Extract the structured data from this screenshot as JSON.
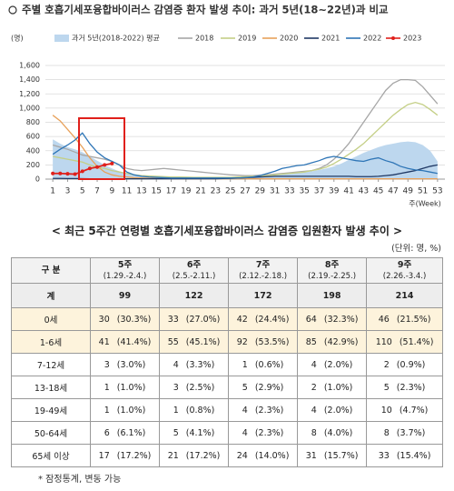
{
  "chart_data": {
    "type": "line",
    "title": "주별 호흡기세포융합바이러스 감염증 환자 발생 추이: 과거 5년(18~22년)과 비교",
    "y_label": "(명)",
    "x_label": "주(Week)",
    "x": [
      1,
      2,
      3,
      4,
      5,
      6,
      7,
      8,
      9,
      10,
      11,
      12,
      13,
      14,
      15,
      16,
      17,
      18,
      19,
      20,
      21,
      22,
      23,
      24,
      25,
      26,
      27,
      28,
      29,
      30,
      31,
      32,
      33,
      34,
      35,
      36,
      37,
      38,
      39,
      40,
      41,
      42,
      43,
      44,
      45,
      46,
      47,
      48,
      49,
      50,
      51,
      52,
      53
    ],
    "xlim": [
      0,
      54
    ],
    "xticks": [
      1,
      3,
      5,
      7,
      9,
      11,
      13,
      15,
      17,
      19,
      21,
      23,
      25,
      27,
      29,
      31,
      33,
      35,
      37,
      39,
      41,
      43,
      45,
      47,
      49,
      51,
      53
    ],
    "ylim": [
      0,
      1600
    ],
    "yticks": [
      0,
      200,
      400,
      600,
      800,
      {
        "value": 1000,
        "label": "1,000"
      },
      {
        "value": 1200,
        "label": "1,200"
      },
      {
        "value": 1400,
        "label": "1,400"
      },
      {
        "value": 1600,
        "label": "1,600"
      }
    ],
    "grid": true,
    "series": [
      {
        "name": "과거 5년(2018-2022) 평균",
        "style": "area",
        "color": "#bdd7ee",
        "values": [
          560,
          500,
          450,
          420,
          380,
          320,
          260,
          200,
          150,
          110,
          80,
          60,
          50,
          45,
          40,
          35,
          30,
          30,
          28,
          25,
          25,
          25,
          25,
          25,
          25,
          28,
          30,
          35,
          40,
          50,
          60,
          70,
          80,
          90,
          100,
          110,
          130,
          150,
          180,
          220,
          270,
          320,
          370,
          410,
          450,
          480,
          500,
          520,
          530,
          520,
          480,
          400,
          250
        ]
      },
      {
        "name": "2018",
        "style": "line",
        "color": "#a6a6a6",
        "values": [
          480,
          450,
          420,
          380,
          340,
          320,
          300,
          280,
          250,
          200,
          150,
          130,
          120,
          130,
          140,
          150,
          140,
          130,
          120,
          110,
          100,
          90,
          80,
          70,
          60,
          55,
          50,
          50,
          55,
          60,
          70,
          80,
          90,
          100,
          110,
          120,
          150,
          200,
          280,
          380,
          500,
          650,
          800,
          950,
          1100,
          1250,
          1350,
          1400,
          1400,
          1390,
          1300,
          1180,
          1060
        ]
      },
      {
        "name": "2019",
        "style": "line",
        "color": "#c4cf86",
        "values": [
          320,
          300,
          280,
          260,
          240,
          200,
          170,
          150,
          120,
          100,
          80,
          60,
          50,
          45,
          40,
          35,
          30,
          30,
          28,
          25,
          25,
          25,
          25,
          25,
          25,
          30,
          35,
          40,
          45,
          50,
          60,
          70,
          80,
          90,
          100,
          120,
          140,
          170,
          220,
          280,
          350,
          420,
          500,
          600,
          700,
          800,
          900,
          980,
          1050,
          1080,
          1050,
          980,
          900
        ]
      },
      {
        "name": "2020",
        "style": "line",
        "color": "#e8a15a",
        "values": [
          900,
          820,
          700,
          580,
          450,
          300,
          180,
          100,
          60,
          40,
          30,
          20,
          15,
          12,
          10,
          8,
          6,
          5,
          5,
          5,
          5,
          5,
          5,
          5,
          5,
          5,
          5,
          5,
          5,
          5,
          5,
          5,
          5,
          5,
          5,
          5,
          5,
          5,
          5,
          5,
          5,
          5,
          5,
          5,
          5,
          5,
          5,
          5,
          5,
          5,
          5,
          5,
          5
        ]
      },
      {
        "name": "2021",
        "style": "line",
        "color": "#1f3864",
        "values": [
          10,
          10,
          8,
          8,
          6,
          5,
          5,
          5,
          5,
          5,
          5,
          5,
          5,
          5,
          5,
          5,
          5,
          5,
          5,
          5,
          5,
          5,
          5,
          8,
          10,
          15,
          20,
          25,
          30,
          35,
          40,
          40,
          40,
          40,
          40,
          40,
          40,
          40,
          40,
          40,
          40,
          35,
          35,
          35,
          40,
          50,
          60,
          80,
          100,
          120,
          150,
          180,
          200
        ]
      },
      {
        "name": "2022",
        "style": "line",
        "color": "#2e75b6",
        "values": [
          350,
          420,
          480,
          550,
          650,
          500,
          380,
          300,
          250,
          200,
          100,
          60,
          40,
          30,
          25,
          20,
          15,
          15,
          15,
          15,
          15,
          15,
          15,
          15,
          15,
          15,
          20,
          30,
          50,
          80,
          110,
          150,
          170,
          190,
          200,
          230,
          260,
          300,
          320,
          300,
          280,
          260,
          250,
          280,
          300,
          260,
          230,
          180,
          150,
          130,
          120,
          100,
          80
        ]
      },
      {
        "name": "2023",
        "style": "marker-line",
        "color": "#e0201b",
        "values": [
          80,
          80,
          75,
          70,
          110,
          150,
          170,
          200,
          220,
          null,
          null,
          null,
          null,
          null,
          null,
          null,
          null,
          null,
          null,
          null,
          null,
          null,
          null,
          null,
          null,
          null,
          null,
          null,
          null,
          null,
          null,
          null,
          null,
          null,
          null,
          null,
          null,
          null,
          null,
          null,
          null,
          null,
          null,
          null,
          null,
          null,
          null,
          null,
          null,
          null,
          null,
          null,
          null
        ]
      }
    ]
  },
  "table": {
    "title": "< 최근 5주간 연령별 호흡기세포융합바이러스 감염증 입원환자 발생 추이 >",
    "unit": "(단위: 명, %)",
    "corner": "구 분",
    "columns": [
      {
        "week": "5주",
        "period": "(1.29.-2.4.)"
      },
      {
        "week": "6주",
        "period": "(2.5.-2.11.)"
      },
      {
        "week": "7주",
        "period": "(2.12.-2.18.)"
      },
      {
        "week": "8주",
        "period": "(2.19.-2.25.)"
      },
      {
        "week": "9주",
        "period": "(2.26.-3.4.)"
      }
    ],
    "rows": [
      {
        "label": "계",
        "cells": [
          {
            "count": 99
          },
          {
            "count": 122
          },
          {
            "count": 172
          },
          {
            "count": 198
          },
          {
            "count": 214
          }
        ]
      },
      {
        "label": "0세",
        "cells": [
          {
            "count": 30,
            "pct": "(30.3%)"
          },
          {
            "count": 33,
            "pct": "(27.0%)"
          },
          {
            "count": 42,
            "pct": "(24.4%)"
          },
          {
            "count": 64,
            "pct": "(32.3%)"
          },
          {
            "count": 46,
            "pct": "(21.5%)"
          }
        ]
      },
      {
        "label": "1-6세",
        "cells": [
          {
            "count": 41,
            "pct": "(41.4%)"
          },
          {
            "count": 55,
            "pct": "(45.1%)"
          },
          {
            "count": 92,
            "pct": "(53.5%)"
          },
          {
            "count": 85,
            "pct": "(42.9%)"
          },
          {
            "count": 110,
            "pct": "(51.4%)"
          }
        ]
      },
      {
        "label": "7-12세",
        "cells": [
          {
            "count": 3,
            "pct": "(3.0%)"
          },
          {
            "count": 4,
            "pct": "(3.3%)"
          },
          {
            "count": 1,
            "pct": "(0.6%)"
          },
          {
            "count": 4,
            "pct": "(2.0%)"
          },
          {
            "count": 2,
            "pct": "(0.9%)"
          }
        ]
      },
      {
        "label": "13-18세",
        "cells": [
          {
            "count": 1,
            "pct": "(1.0%)"
          },
          {
            "count": 3,
            "pct": "(2.5%)"
          },
          {
            "count": 5,
            "pct": "(2.9%)"
          },
          {
            "count": 2,
            "pct": "(1.0%)"
          },
          {
            "count": 5,
            "pct": "(2.3%)"
          }
        ]
      },
      {
        "label": "19-49세",
        "cells": [
          {
            "count": 1,
            "pct": "(1.0%)"
          },
          {
            "count": 1,
            "pct": "(0.8%)"
          },
          {
            "count": 4,
            "pct": "(2.3%)"
          },
          {
            "count": 4,
            "pct": "(2.0%)"
          },
          {
            "count": 10,
            "pct": "(4.7%)"
          }
        ]
      },
      {
        "label": "50-64세",
        "cells": [
          {
            "count": 6,
            "pct": "(6.1%)"
          },
          {
            "count": 5,
            "pct": "(4.1%)"
          },
          {
            "count": 4,
            "pct": "(2.3%)"
          },
          {
            "count": 8,
            "pct": "(4.0%)"
          },
          {
            "count": 8,
            "pct": "(3.7%)"
          }
        ]
      },
      {
        "label": "65세 이상",
        "cells": [
          {
            "count": 17,
            "pct": "(17.2%)"
          },
          {
            "count": 21,
            "pct": "(17.2%)"
          },
          {
            "count": 24,
            "pct": "(14.0%)"
          },
          {
            "count": 31,
            "pct": "(15.7%)"
          },
          {
            "count": 33,
            "pct": "(15.4%)"
          }
        ]
      }
    ],
    "footnote": "* 잠정통계, 변동 가능"
  }
}
